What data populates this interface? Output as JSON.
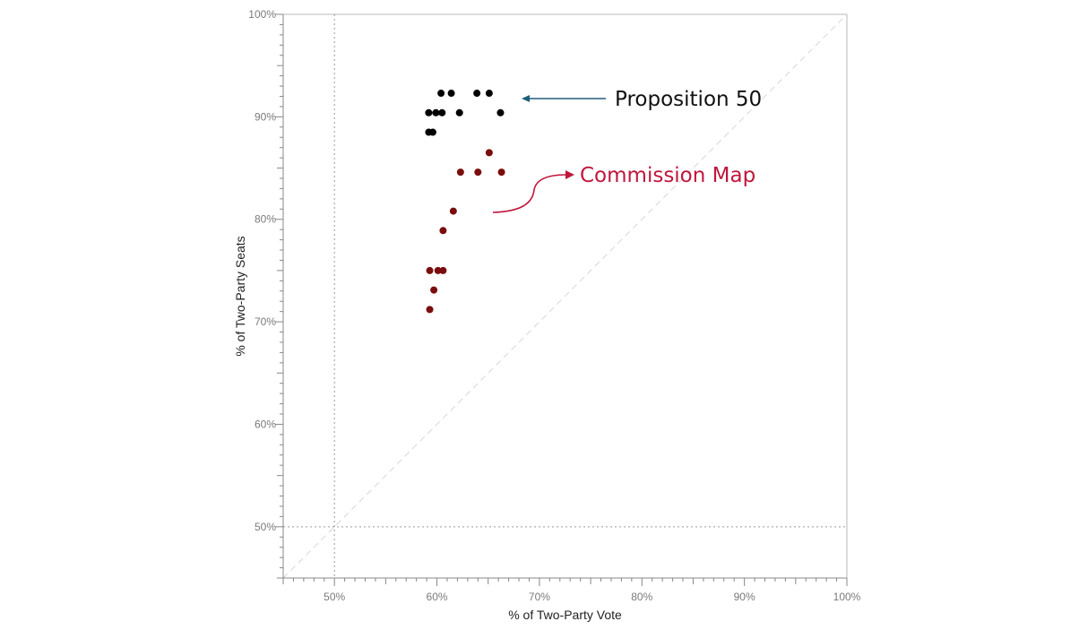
{
  "chart_data": {
    "type": "scatter",
    "xlabel": "% of Two-Party Vote",
    "ylabel": "% of Two-Party Seats",
    "xlim": [
      45,
      100
    ],
    "ylim": [
      45,
      100
    ],
    "x_ticks": [
      {
        "value": 50,
        "label": "50%"
      },
      {
        "value": 60,
        "label": "60%"
      },
      {
        "value": 70,
        "label": "70%"
      },
      {
        "value": 80,
        "label": "80%"
      },
      {
        "value": 90,
        "label": "90%"
      },
      {
        "value": 100,
        "label": "100%"
      }
    ],
    "y_ticks": [
      {
        "value": 50,
        "label": "50%"
      },
      {
        "value": 60,
        "label": "60%"
      },
      {
        "value": 70,
        "label": "70%"
      },
      {
        "value": 80,
        "label": "80%"
      },
      {
        "value": 90,
        "label": "90%"
      },
      {
        "value": 100,
        "label": "100%"
      }
    ],
    "reference_lines": {
      "x_dotted": 50,
      "y_dotted": 50,
      "diagonal_dashed": true
    },
    "series": [
      {
        "name": "Proposition 50",
        "color": "#000000",
        "points": [
          {
            "x": 59.2,
            "y": 90.4
          },
          {
            "x": 59.9,
            "y": 90.4
          },
          {
            "x": 60.5,
            "y": 90.4
          },
          {
            "x": 62.2,
            "y": 90.4
          },
          {
            "x": 66.2,
            "y": 90.4
          },
          {
            "x": 59.2,
            "y": 88.5
          },
          {
            "x": 59.6,
            "y": 88.5
          },
          {
            "x": 60.4,
            "y": 92.3
          },
          {
            "x": 61.4,
            "y": 92.3
          },
          {
            "x": 63.9,
            "y": 92.3
          },
          {
            "x": 65.1,
            "y": 92.3
          }
        ]
      },
      {
        "name": "Commission Map",
        "color": "#7a0d0d",
        "points": [
          {
            "x": 65.1,
            "y": 86.5
          },
          {
            "x": 62.3,
            "y": 84.6
          },
          {
            "x": 64.0,
            "y": 84.6
          },
          {
            "x": 66.3,
            "y": 84.6
          },
          {
            "x": 61.6,
            "y": 80.8
          },
          {
            "x": 60.6,
            "y": 78.9
          },
          {
            "x": 59.3,
            "y": 75.0
          },
          {
            "x": 60.1,
            "y": 75.0
          },
          {
            "x": 60.6,
            "y": 75.0
          },
          {
            "x": 59.7,
            "y": 73.1
          },
          {
            "x": 59.3,
            "y": 71.2
          }
        ]
      }
    ],
    "annotations": [
      {
        "text": "Proposition 50",
        "color": "#111111",
        "arrow_color": "#1f5f7a"
      },
      {
        "text": "Commission Map",
        "color": "#c0163c",
        "arrow_color": "#c0163c"
      }
    ]
  }
}
